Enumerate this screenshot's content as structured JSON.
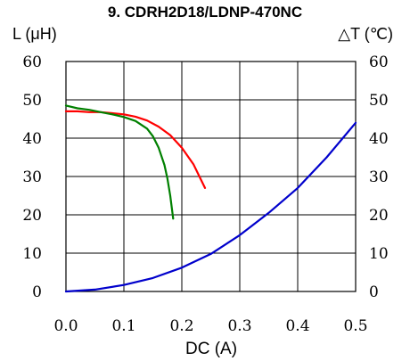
{
  "chart_data": {
    "type": "line",
    "title": "9. CDRH2D18/LDNP-470NC",
    "xlabel": "DC (A)",
    "ylabel_left": "L (μH)",
    "ylabel_right": "△T (℃)",
    "xlim": [
      0,
      0.5
    ],
    "ylim_left": [
      0,
      60
    ],
    "ylim_right": [
      0,
      60
    ],
    "x_ticks": [
      "0.0",
      "0.1",
      "0.2",
      "0.3",
      "0.4",
      "0.5"
    ],
    "y_ticks_left": [
      "0",
      "10",
      "20",
      "30",
      "40",
      "50",
      "60"
    ],
    "y_ticks_right": [
      "0",
      "10",
      "20",
      "30",
      "40",
      "50",
      "60"
    ],
    "grid": true,
    "series": [
      {
        "color": "#ff0000",
        "axis": "left",
        "x": [
          0.0,
          0.02,
          0.04,
          0.06,
          0.08,
          0.1,
          0.12,
          0.14,
          0.16,
          0.18,
          0.2,
          0.22,
          0.24
        ],
        "y": [
          47,
          47,
          46.8,
          46.8,
          46.5,
          46.2,
          45.6,
          44.6,
          43.0,
          40.8,
          37.5,
          33.2,
          27.0
        ]
      },
      {
        "color": "#008000",
        "axis": "left",
        "x": [
          0.0,
          0.02,
          0.04,
          0.06,
          0.08,
          0.1,
          0.12,
          0.14,
          0.15,
          0.16,
          0.17,
          0.175,
          0.18,
          0.185
        ],
        "y": [
          48.5,
          47.8,
          47.4,
          46.8,
          46.2,
          45.5,
          44.5,
          42.5,
          40.5,
          37.5,
          33.0,
          29.5,
          25.0,
          19.0
        ]
      },
      {
        "color": "#0000cc",
        "axis": "right",
        "x": [
          0.0,
          0.05,
          0.1,
          0.15,
          0.2,
          0.25,
          0.3,
          0.35,
          0.4,
          0.45,
          0.5
        ],
        "y": [
          0,
          0.5,
          1.7,
          3.5,
          6.2,
          9.8,
          14.7,
          20.5,
          27.0,
          35.0,
          44.0
        ]
      }
    ]
  }
}
